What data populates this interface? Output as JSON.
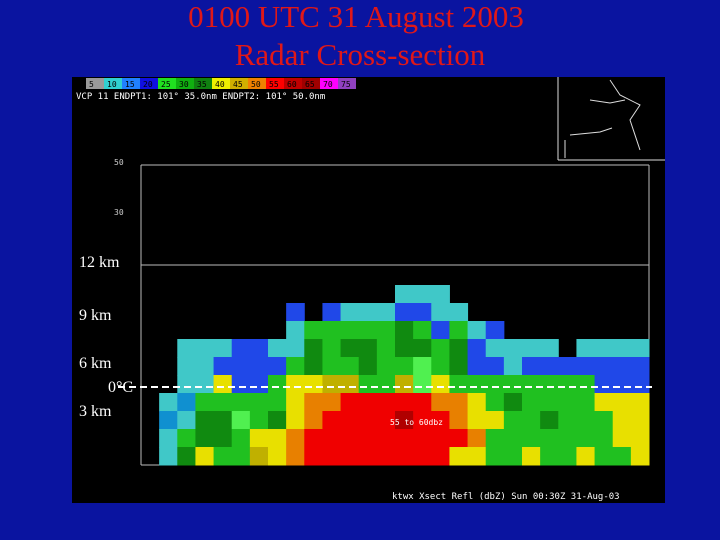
{
  "title": {
    "line1": "0100 UTC 31 August 2003",
    "line2": "Radar Cross-section"
  },
  "panel": {
    "color_scale": [
      "5",
      "10",
      "15",
      "20",
      "25",
      "30",
      "35",
      "40",
      "45",
      "50",
      "55",
      "60",
      "65",
      "70",
      "75"
    ],
    "info_line": "VCP 11   ENDPT1:  101°  35.0nm     ENDPT2:  101°  50.0nm",
    "height_ticks": [
      "50",
      "30"
    ],
    "height_labels": [
      "12 km",
      "9 km",
      "6 km",
      "3 km"
    ],
    "freezing_level": "0°C",
    "core_note": "55 to 60dbz",
    "footer": "ktwx Xsect Refl (dbZ)   Sun 00:30Z 31-Aug-03"
  }
}
